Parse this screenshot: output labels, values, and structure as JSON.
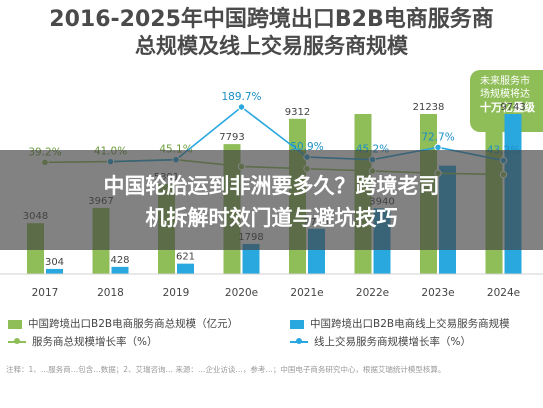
{
  "chart_data": {
    "type": "bar",
    "title_line1": "2016-2025年中国跨境出口B2B电商服务商",
    "title_line2": "总规模及线上交易服务商规模",
    "categories": [
      "2017",
      "2018",
      "2019",
      "2020e",
      "2021e",
      "2022e",
      "2023e",
      "2024e"
    ],
    "series": [
      {
        "name": "中国跨境出口B2B电商服务商总规模（亿元）",
        "kind": "bar",
        "color": "#8fbe58",
        "values": [
          3048,
          3967,
          5391,
          7793,
          9312,
          11000,
          21238,
          21000
        ],
        "labels": [
          "3048",
          "3967",
          "5391",
          "7793",
          "9312",
          "",
          "21238",
          ""
        ]
      },
      {
        "name": "中国跨境出口B2B电商线上交易服务商规模",
        "kind": "bar",
        "color": "#29a8df",
        "values": [
          304,
          428,
          621,
          1798,
          2713,
          3940,
          6500,
          9743
        ],
        "labels": [
          "304",
          "428",
          "621",
          "1798",
          "2713",
          "3940",
          "",
          "9743"
        ]
      },
      {
        "name": "服务商总规模增长率（%）",
        "kind": "line",
        "color": "#8fbe58",
        "values": [
          39.2,
          41.0,
          45.1,
          30,
          25,
          20,
          15,
          12
        ],
        "labels": [
          "39.2%",
          "41.0%",
          "45.1%",
          "",
          "",
          "",
          "",
          ""
        ]
      },
      {
        "name": "线上交易服务商规模增长率（%）",
        "kind": "line",
        "color": "#29a8df",
        "values": [
          null,
          40.8,
          45.1,
          189.7,
          50.9,
          45.2,
          72.7,
          43.2
        ],
        "labels": [
          "",
          "",
          "",
          "189.7%",
          "50.9%",
          "45.2%",
          "72.7%",
          "43.2%"
        ]
      }
    ],
    "legend_position": "bottom",
    "grid": false
  },
  "badge": {
    "line1": "未来服务市",
    "line2": "场规模将达",
    "line3": "十万亿量级"
  },
  "source_note": "注释：1、…服务商…包含…数据；2、艾瑞咨询… 来源：…企业访谈…，参考…；中国电子商务研究中心，根据艾瑞统计模型核算。",
  "overlay": {
    "line1": "中国轮胎运到非洲要多久？跨境老司",
    "line2": "机拆解时效门道与避坑技巧"
  }
}
